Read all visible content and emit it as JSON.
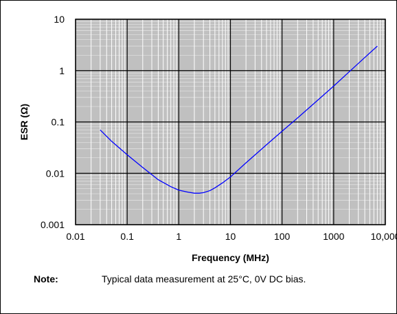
{
  "chart_data": {
    "type": "line",
    "title": "",
    "xlabel": "Frequency (MHz)",
    "ylabel": "ESR (Ω)",
    "x_scale": "log",
    "y_scale": "log",
    "xlim": [
      0.01,
      10000
    ],
    "ylim": [
      0.001,
      10
    ],
    "x_ticks": [
      {
        "value": 0.01,
        "label": "0.01"
      },
      {
        "value": 0.1,
        "label": "0.1"
      },
      {
        "value": 1,
        "label": "1"
      },
      {
        "value": 10,
        "label": "10"
      },
      {
        "value": 100,
        "label": "100"
      },
      {
        "value": 1000,
        "label": "1000"
      },
      {
        "value": 10000,
        "label": "10,000"
      }
    ],
    "y_ticks": [
      {
        "value": 0.001,
        "label": "0.001"
      },
      {
        "value": 0.01,
        "label": "0.01"
      },
      {
        "value": 0.1,
        "label": "0.1"
      },
      {
        "value": 1,
        "label": "1"
      },
      {
        "value": 10,
        "label": "10"
      }
    ],
    "grid": true,
    "plot_background": "#c0c0c0",
    "series": [
      {
        "color": "#0000ff",
        "x": [
          0.03,
          0.05,
          0.1,
          0.2,
          0.4,
          0.7,
          1,
          1.5,
          2,
          2.5,
          3,
          4,
          5,
          7,
          10,
          20,
          50,
          100,
          200,
          500,
          1000,
          2000,
          4000,
          7000
        ],
        "y": [
          0.07,
          0.042,
          0.023,
          0.013,
          0.0075,
          0.0055,
          0.0047,
          0.0043,
          0.0041,
          0.0041,
          0.0042,
          0.0046,
          0.0052,
          0.0065,
          0.0085,
          0.016,
          0.036,
          0.066,
          0.12,
          0.27,
          0.5,
          0.95,
          1.8,
          3.0
        ]
      }
    ]
  },
  "note": {
    "label": "Note:",
    "text": "Typical data measurement at 25°C, 0V DC bias."
  }
}
